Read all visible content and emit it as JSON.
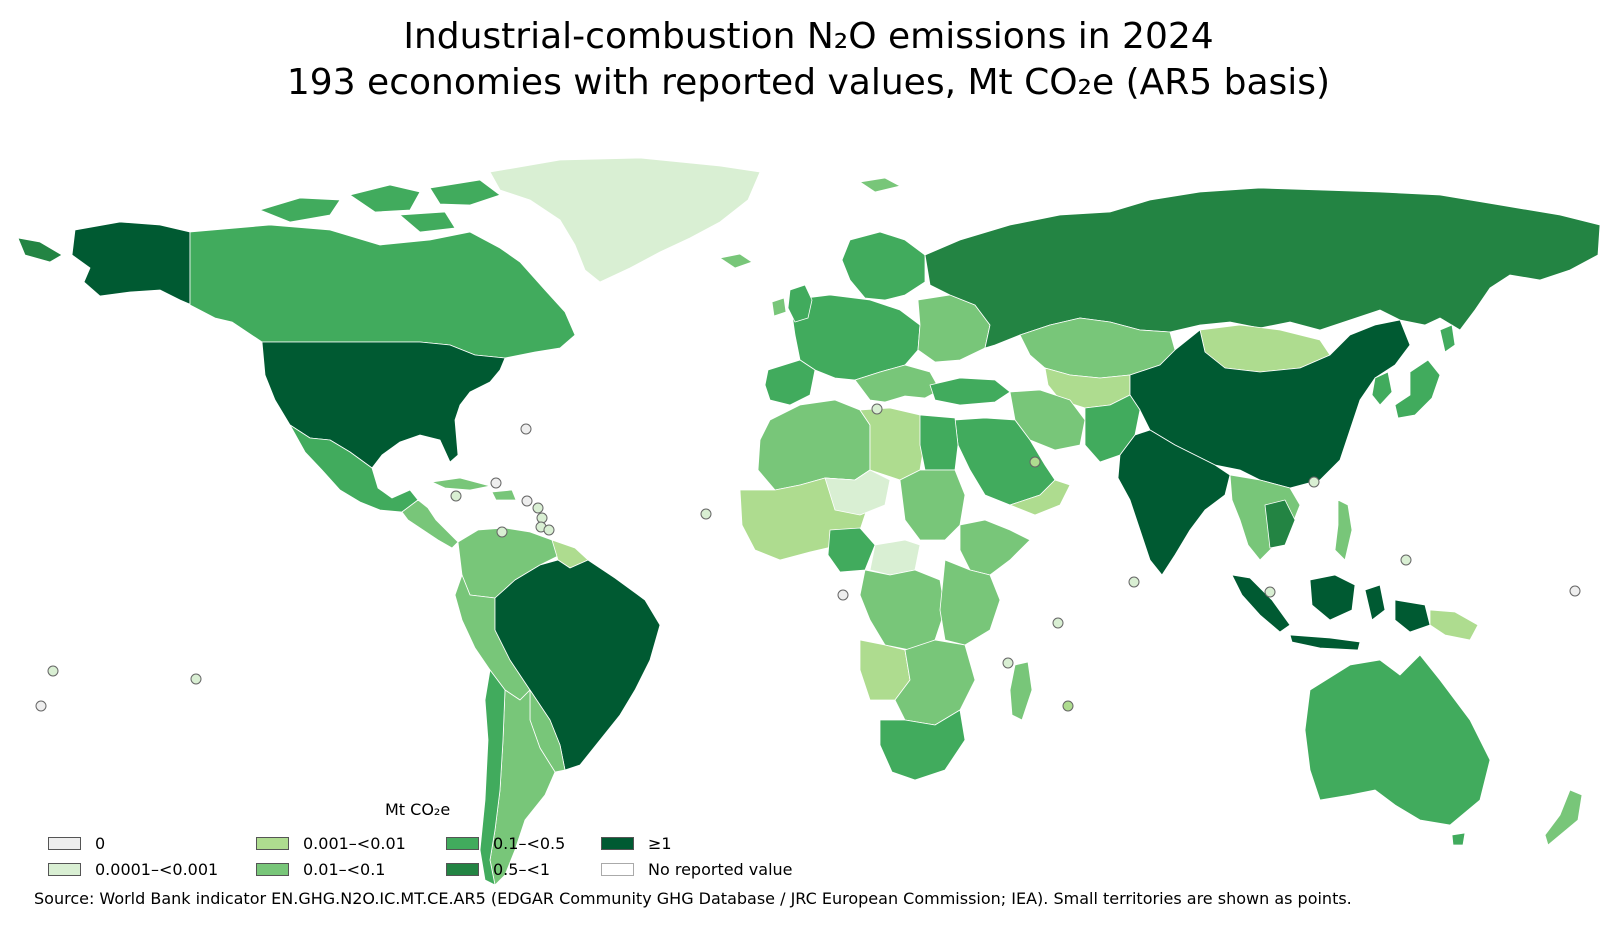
{
  "title": {
    "line1": "Industrial-combustion N₂O emissions in 2024",
    "line2": "193 economies with reported values, Mt CO₂e (AR5 basis)"
  },
  "legend": {
    "title": "Mt CO₂e",
    "items": [
      {
        "label": "0",
        "color": "#eeeeee"
      },
      {
        "label": "0.0001–<0.001",
        "color": "#d9efd3"
      },
      {
        "label": "0.001–<0.01",
        "color": "#aedc8f"
      },
      {
        "label": "0.01–<0.1",
        "color": "#78c679"
      },
      {
        "label": "0.1–<0.5",
        "color": "#41ab5d"
      },
      {
        "label": "0.5–<1",
        "color": "#238443"
      },
      {
        "label": "≥1",
        "color": "#005a32"
      },
      {
        "label": "No reported value",
        "color": "#ffffff"
      }
    ]
  },
  "source": "Source: World Bank indicator EN.GHG.N2O.IC.MT.CE.AR5 (EDGAR Community GHG Database / JRC European Commission; IEA). Small territories are shown as points.",
  "map": {
    "regions": [
      {
        "name": "United States",
        "class": "≥1"
      },
      {
        "name": "Alaska",
        "class": "≥1"
      },
      {
        "name": "Canada",
        "class": "0.1–<0.5"
      },
      {
        "name": "Greenland",
        "class": "0.0001–<0.001"
      },
      {
        "name": "Mexico",
        "class": "0.1–<0.5"
      },
      {
        "name": "Brazil",
        "class": "≥1"
      },
      {
        "name": "Russia",
        "class": "0.5–<1"
      },
      {
        "name": "China",
        "class": "≥1"
      },
      {
        "name": "India",
        "class": "≥1"
      },
      {
        "name": "Indonesia",
        "class": "≥1"
      },
      {
        "name": "Australia",
        "class": "0.1–<0.5"
      },
      {
        "name": "South Africa",
        "class": "0.1–<0.5"
      },
      {
        "name": "Egypt",
        "class": "0.1–<0.5"
      },
      {
        "name": "Mongolia",
        "class": "0.001–<0.01"
      },
      {
        "name": "Kazakhstan",
        "class": "0.01–<0.1"
      },
      {
        "name": "Nigeria",
        "class": "0.1–<0.5"
      },
      {
        "name": "Argentina",
        "class": "0.01–<0.1"
      },
      {
        "name": "Chile",
        "class": "0.1–<0.5"
      },
      {
        "name": "Saudi Arabia",
        "class": "0.1–<0.5"
      },
      {
        "name": "Japan",
        "class": "0.1–<0.5"
      }
    ]
  }
}
